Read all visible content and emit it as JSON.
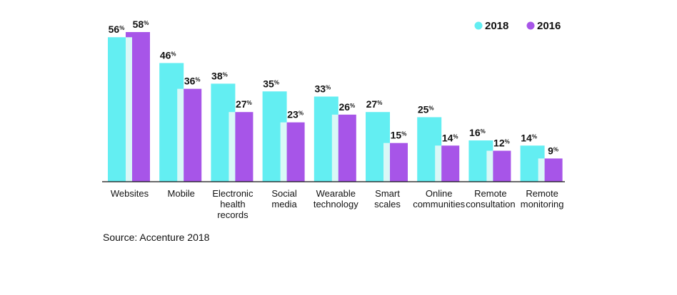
{
  "chart_data": {
    "type": "bar",
    "categories": [
      [
        "Websites"
      ],
      [
        "Mobile"
      ],
      [
        "Electronic",
        "health",
        "records"
      ],
      [
        "Social",
        "media"
      ],
      [
        "Wearable",
        "technology"
      ],
      [
        "Smart",
        "scales"
      ],
      [
        "Online",
        "communities"
      ],
      [
        "Remote",
        "consultation"
      ],
      [
        "Remote",
        "monitoring"
      ]
    ],
    "series": [
      {
        "name": "2018",
        "color": "#63EEF2",
        "values": [
          56,
          46,
          38,
          35,
          33,
          27,
          25,
          16,
          14
        ]
      },
      {
        "name": "2016",
        "color": "#A755E8",
        "values": [
          58,
          36,
          27,
          23,
          26,
          15,
          14,
          12,
          9
        ]
      }
    ],
    "value_suffix": "%",
    "ylim": [
      0,
      58
    ],
    "grid": false,
    "legend_position": "top-right",
    "overlap_color": "#D9F8F7",
    "source": "Source: Accenture 2018"
  }
}
